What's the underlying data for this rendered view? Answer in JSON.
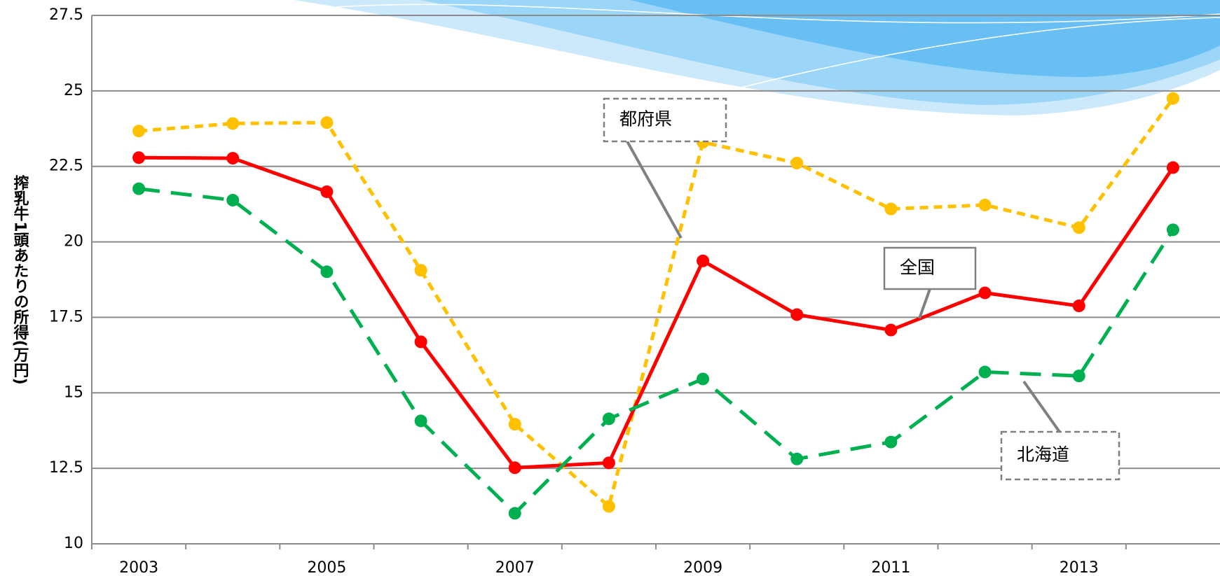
{
  "chart_data": {
    "type": "line",
    "y_label": "搾乳牛1頭あたりの所得(万円)",
    "categories": [
      "2003",
      null,
      "2005",
      null,
      "2007",
      null,
      "2009",
      null,
      "2011",
      null,
      "2013",
      null
    ],
    "series": [
      {
        "name": "都府県",
        "color": "#ffc000",
        "line_style": "short-dash",
        "values": [
          23.67,
          23.92,
          23.95,
          19.06,
          13.96,
          11.24,
          23.3,
          22.61,
          21.09,
          21.22,
          20.47,
          24.75
        ]
      },
      {
        "name": "全国",
        "color": "#ff0000",
        "line_style": "solid",
        "values": [
          22.79,
          22.77,
          21.66,
          16.69,
          12.52,
          12.68,
          19.37,
          17.59,
          17.08,
          18.31,
          17.88,
          22.46
        ]
      },
      {
        "name": "北海道",
        "color": "#00b050",
        "line_style": "long-dash",
        "values": [
          21.76,
          21.38,
          19.01,
          14.07,
          11.01,
          14.14,
          15.46,
          12.81,
          13.37,
          15.69,
          15.56,
          20.4
        ]
      }
    ],
    "ylim": [
      10,
      27.5
    ],
    "yticks": [
      10,
      12.5,
      15,
      17.5,
      20,
      22.5,
      25,
      27.5
    ],
    "grid": true
  }
}
